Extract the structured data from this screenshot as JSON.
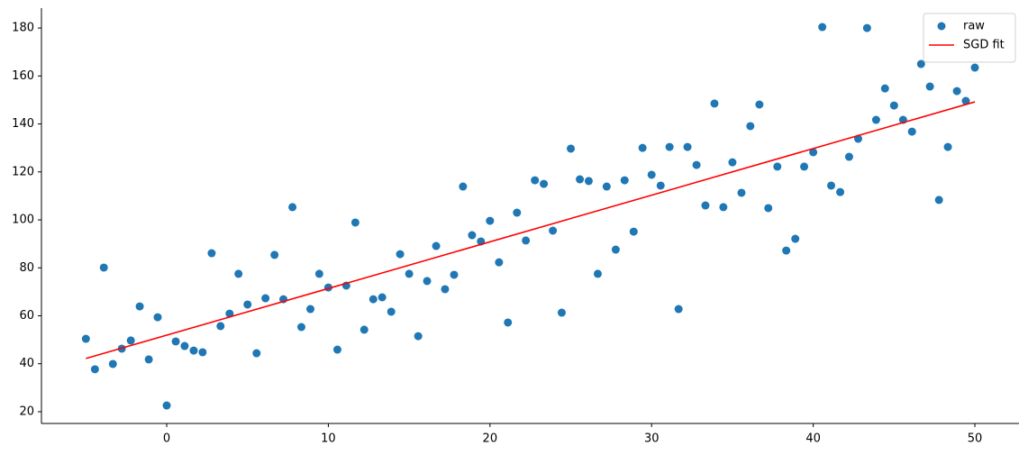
{
  "chart_data": {
    "type": "scatter",
    "xlim": [
      -7.75,
      52.73
    ],
    "ylim": [
      15.1,
      188.3
    ],
    "xticks": [
      0,
      10,
      20,
      30,
      40,
      50
    ],
    "yticks": [
      20,
      40,
      60,
      80,
      100,
      120,
      140,
      160,
      180
    ],
    "legend": "upper right",
    "series": [
      {
        "name": "raw",
        "color": "#1f77b4",
        "style": "markers",
        "x": [
          -5,
          -4.44,
          -3.89,
          -3.33,
          -2.78,
          -2.22,
          -1.67,
          -1.11,
          -0.56,
          0,
          0.56,
          1.11,
          1.67,
          2.22,
          2.78,
          3.33,
          3.89,
          4.44,
          5,
          5.56,
          6.11,
          6.67,
          7.22,
          7.78,
          8.33,
          8.89,
          9.44,
          10,
          10.56,
          11.11,
          11.67,
          12.22,
          12.78,
          13.33,
          13.89,
          14.44,
          15,
          15.56,
          16.11,
          16.67,
          17.22,
          17.78,
          18.33,
          18.89,
          19.44,
          20,
          20.56,
          21.11,
          21.67,
          22.22,
          22.78,
          23.33,
          23.89,
          24.44,
          25,
          25.56,
          26.11,
          26.67,
          27.22,
          27.78,
          28.33,
          28.89,
          29.44,
          30,
          30.56,
          31.11,
          31.67,
          32.22,
          32.78,
          33.33,
          33.89,
          34.44,
          35,
          35.56,
          36.11,
          36.67,
          37.22,
          37.78,
          38.33,
          38.89,
          39.44,
          40,
          40.56,
          41.11,
          41.67,
          42.22,
          42.78,
          43.33,
          43.89,
          44.44,
          45,
          45.56,
          46.11,
          46.67,
          47.22,
          47.78,
          48.33,
          48.89,
          49.44,
          50
        ],
        "values": [
          50.4,
          37.7,
          80.1,
          39.9,
          46.3,
          49.7,
          63.9,
          41.8,
          59.4,
          22.6,
          49.3,
          47.4,
          45.5,
          44.8,
          86.1,
          55.7,
          60.9,
          77.5,
          64.7,
          44.4,
          67.3,
          85.4,
          66.9,
          105.3,
          55.3,
          62.8,
          77.5,
          71.8,
          45.9,
          72.6,
          98.9,
          54.2,
          66.9,
          67.7,
          61.7,
          85.7,
          77.5,
          51.5,
          74.5,
          89.1,
          71.1,
          77.1,
          113.9,
          93.6,
          91.0,
          99.6,
          82.3,
          57.2,
          103.0,
          91.4,
          116.5,
          115.0,
          95.5,
          61.3,
          129.7,
          116.9,
          116.2,
          77.5,
          113.9,
          87.6,
          116.5,
          95.1,
          130.0,
          118.8,
          114.3,
          130.4,
          62.8,
          130.4,
          122.9,
          106.0,
          148.5,
          105.3,
          124.0,
          111.3,
          139.1,
          148.1,
          104.9,
          122.2,
          87.2,
          92.1,
          122.2,
          128.2,
          180.4,
          114.3,
          111.6,
          126.3,
          133.8,
          180.0,
          141.7,
          154.8,
          147.7,
          141.7,
          136.8,
          165.0,
          155.6,
          108.3,
          130.4,
          153.7,
          149.6,
          163.5
        ]
      },
      {
        "name": "SGD fit",
        "color": "#ff0000",
        "style": "line",
        "x": [
          -5,
          50
        ],
        "values": [
          42.2,
          149.2
        ]
      }
    ]
  }
}
